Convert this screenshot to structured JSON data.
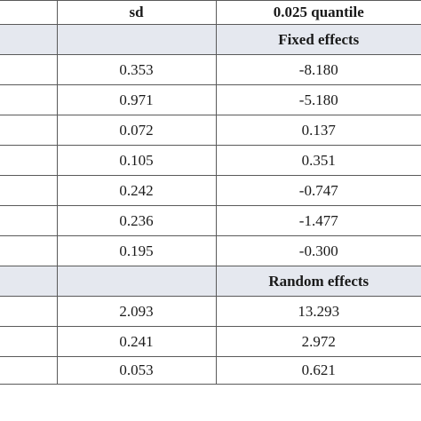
{
  "headers": [
    "",
    "sd",
    "0.025 quantile"
  ],
  "fixed_section": {
    "label": "Fixed effects"
  },
  "fixed_rows": [
    {
      "sd": "0.353",
      "q025": "-8.180"
    },
    {
      "sd": "0.971",
      "q025": "-5.180"
    },
    {
      "sd": "0.072",
      "q025": "0.137"
    },
    {
      "sd": "0.105",
      "q025": "0.351"
    },
    {
      "sd": "0.242",
      "q025": "-0.747"
    },
    {
      "sd": "0.236",
      "q025": "-1.477"
    },
    {
      "sd": "0.195",
      "q025": "-0.300"
    }
  ],
  "random_section": {
    "label": "Random effects"
  },
  "random_rows": [
    {
      "sd": "2.093",
      "q025": "13.293"
    },
    {
      "sd": "0.241",
      "q025": "2.972"
    },
    {
      "sd": "0.053",
      "q025": "0.621"
    }
  ]
}
